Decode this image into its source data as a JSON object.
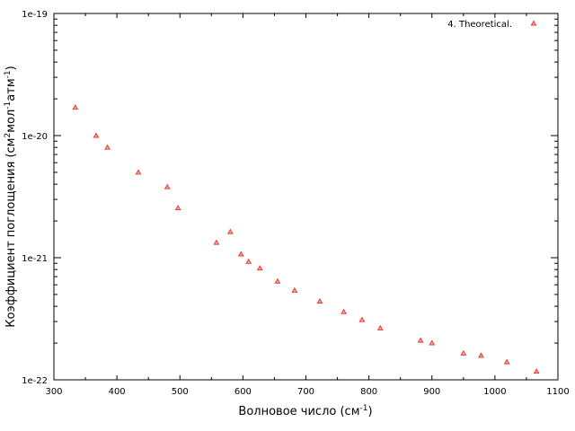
{
  "chart_data": {
    "type": "scatter",
    "xlabel_main": "Волновое число (см",
    "xlabel_sup": "-1",
    "xlabel_end": ")",
    "ylabel": {
      "p1": "Коэффициент поглощения (см",
      "s1": "2",
      "p2": "мол",
      "s2": "-1",
      "p3": "атм",
      "s3": "-1",
      "p4": ")"
    },
    "x_ticks": [
      "300",
      "400",
      "500",
      "600",
      "700",
      "800",
      "900",
      "1000",
      "1100"
    ],
    "y_ticks": [
      "1e-22",
      "1e-21",
      "1e-20",
      "1e-19"
    ],
    "xlim": [
      300,
      1100
    ],
    "ylim": [
      1e-22,
      1e-19
    ],
    "y_scale": "log",
    "grid": false,
    "legend_position": "top-right",
    "series": [
      {
        "name": "4. Theoretical.",
        "color": "#e8312a",
        "marker": "triangle",
        "points": [
          [
            334,
            1.7e-20
          ],
          [
            367,
            1e-20
          ],
          [
            385,
            8e-21
          ],
          [
            434,
            5e-21
          ],
          [
            480,
            3.8e-21
          ],
          [
            497,
            2.55e-21
          ],
          [
            558,
            1.33e-21
          ],
          [
            580,
            1.63e-21
          ],
          [
            597,
            1.07e-21
          ],
          [
            609,
            9.3e-22
          ],
          [
            627,
            8.2e-22
          ],
          [
            655,
            6.4e-22
          ],
          [
            682,
            5.4e-22
          ],
          [
            722,
            4.4e-22
          ],
          [
            760,
            3.6e-22
          ],
          [
            789,
            3.1e-22
          ],
          [
            818,
            2.65e-22
          ],
          [
            882,
            2.1e-22
          ],
          [
            900,
            2e-22
          ],
          [
            950,
            1.65e-22
          ],
          [
            978,
            1.58e-22
          ],
          [
            1019,
            1.4e-22
          ],
          [
            1066,
            1.17e-22
          ]
        ]
      }
    ]
  }
}
